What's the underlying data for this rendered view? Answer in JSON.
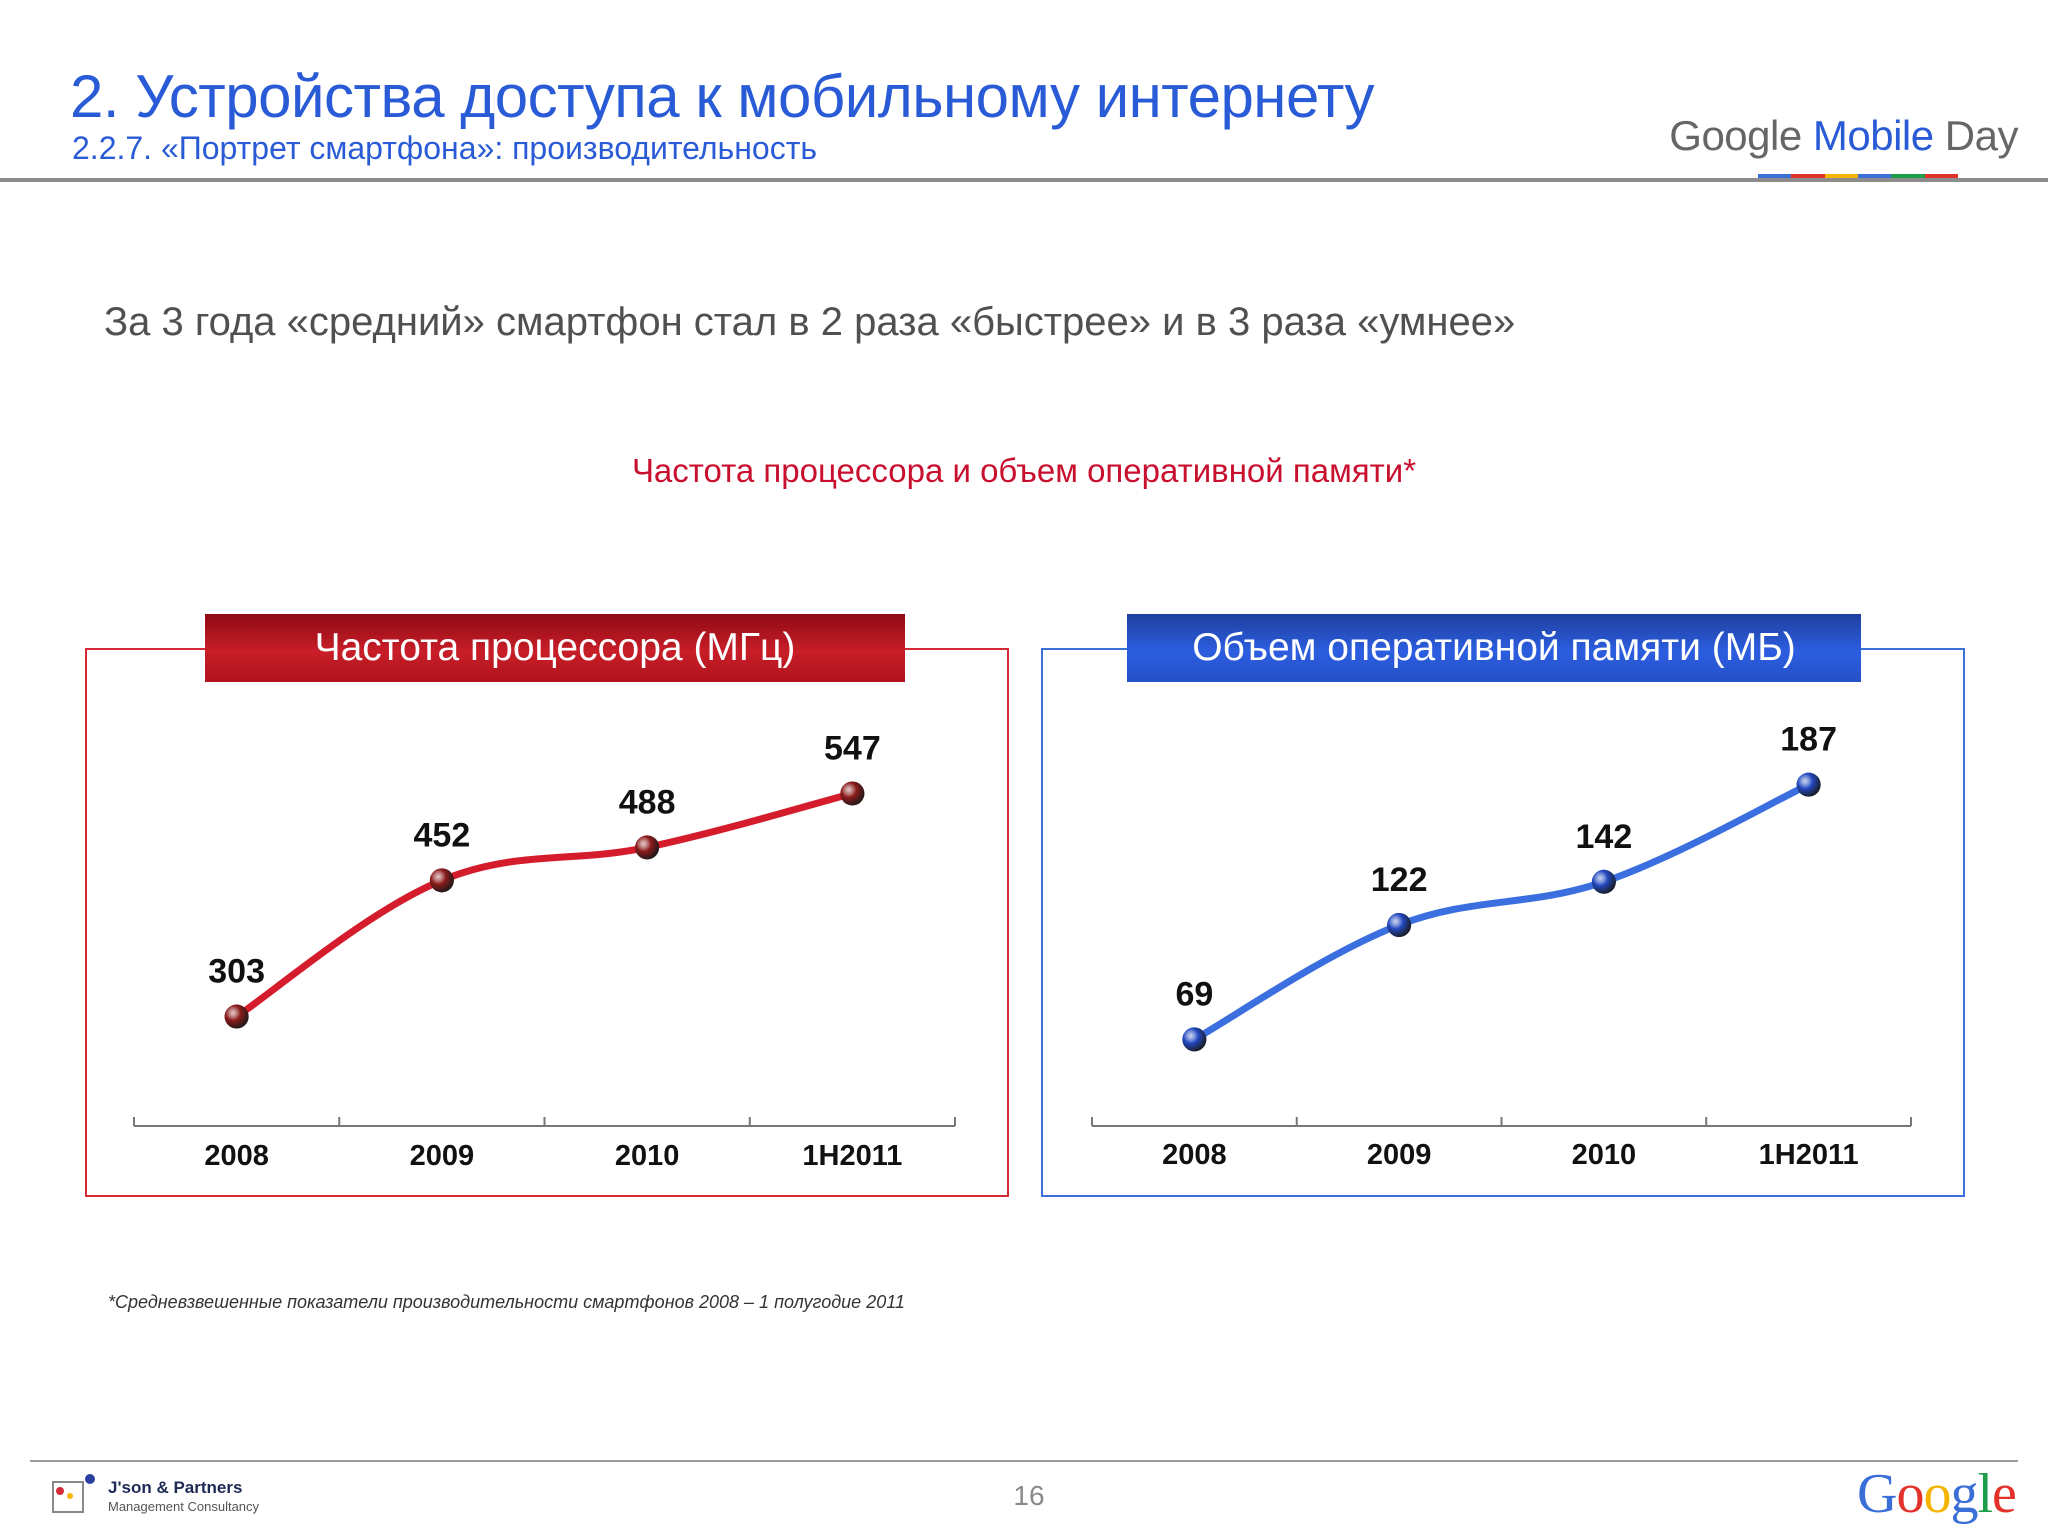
{
  "header": {
    "title": "2. Устройства доступа к мобильному интернету",
    "subtitle": "2.2.7. «Портрет смартфона»: производительность",
    "brand_a": "Google",
    "brand_b": "Mobile",
    "brand_c": "Day",
    "brand_bar_colors": [
      "#3b6fd8",
      "#e3322b",
      "#f4b400",
      "#3b6fd8",
      "#1e9d4a",
      "#e3322b"
    ]
  },
  "lead_text": "За 3 года «средний» смартфон стал в 2 раза «быстрее» и в 3 раза «умнее»",
  "section_title": "Частота процессора и объем оперативной памяти*",
  "chart_data": [
    {
      "type": "line",
      "title": "Частота процессора (МГц)",
      "categories": [
        "2008",
        "2009",
        "2010",
        "1H2011"
      ],
      "values": [
        303,
        452,
        488,
        547
      ],
      "ylim": [
        250,
        600
      ],
      "color": "#d41c2c",
      "marker_color": "#8c1a1a",
      "grid": false,
      "smooth": true
    },
    {
      "type": "line",
      "title": "Объем оперативной памяти (МБ)",
      "categories": [
        "2008",
        "2009",
        "2010",
        "1H2011"
      ],
      "values": [
        69,
        122,
        142,
        187
      ],
      "ylim": [
        40,
        210
      ],
      "color": "#3b6fe0",
      "marker_color": "#2248c0",
      "grid": false,
      "smooth": true
    }
  ],
  "footnote": "*Средневзвешенные показатели производительности смартфонов 2008 – 1 полугодие 2011",
  "footer": {
    "company_name": "J'son & Partners",
    "company_sub": "Management Consultancy",
    "page_number": "16",
    "google_letters": [
      "G",
      "o",
      "o",
      "g",
      "l",
      "e"
    ],
    "google_colors": [
      "#3b6fd8",
      "#e3322b",
      "#f4b400",
      "#3b6fd8",
      "#1e9d4a",
      "#e3322b"
    ]
  }
}
